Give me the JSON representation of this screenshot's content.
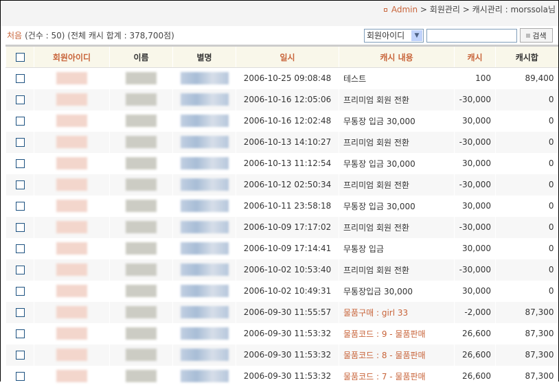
{
  "breadcrumb": {
    "admin": "Admin",
    "path": " > 회원관리 > 캐시관리 : morssola님"
  },
  "info": {
    "first": "처음",
    "summary": "(건수 : 50)  (전체 캐시 합계 : 378,700점)"
  },
  "search": {
    "field": "회원아이디",
    "value": "",
    "button": "검색"
  },
  "columns": [
    "회원아이디",
    "이름",
    "별명",
    "일시",
    "캐시 내용",
    "캐시",
    "캐시합"
  ],
  "rows": [
    {
      "date": "2006-10-25 09:08:48",
      "content": "테스트",
      "cash": "100",
      "total": "89,400",
      "link": false
    },
    {
      "date": "2006-10-16 12:05:06",
      "content": "프리미엄 회원 전환",
      "cash": "-30,000",
      "total": "0",
      "link": false
    },
    {
      "date": "2006-10-16 12:02:48",
      "content": "무통장 입금 30,000",
      "cash": "30,000",
      "total": "0",
      "link": false
    },
    {
      "date": "2006-10-13 14:10:27",
      "content": "프리미엄 회원 전환",
      "cash": "-30,000",
      "total": "0",
      "link": false
    },
    {
      "date": "2006-10-13 11:12:54",
      "content": "무통장 입금 30,000",
      "cash": "30,000",
      "total": "0",
      "link": false
    },
    {
      "date": "2006-10-12 02:50:34",
      "content": "프리미엄 회원 전환",
      "cash": "-30,000",
      "total": "0",
      "link": false
    },
    {
      "date": "2006-10-11 23:58:18",
      "content": "무통장 입금 30,000",
      "cash": "30,000",
      "total": "0",
      "link": false
    },
    {
      "date": "2006-10-09 17:17:02",
      "content": "프리미엄 회원 전환",
      "cash": "-30,000",
      "total": "0",
      "link": false
    },
    {
      "date": "2006-10-09 17:14:41",
      "content": "무통장 입금",
      "cash": "30,000",
      "total": "0",
      "link": false
    },
    {
      "date": "2006-10-02 10:53:40",
      "content": "프리미엄 회원 전환",
      "cash": "-30,000",
      "total": "0",
      "link": false
    },
    {
      "date": "2006-10-02 10:49:31",
      "content": "무통장입금 30,000",
      "cash": "30,000",
      "total": "0",
      "link": false
    },
    {
      "date": "2006-09-30 11:55:57",
      "content": "물품구매 : girl 33",
      "cash": "-2,000",
      "total": "87,300",
      "link": true
    },
    {
      "date": "2006-09-30 11:53:32",
      "content": "물품코드 : 9 - 물품판매",
      "cash": "26,600",
      "total": "87,300",
      "link": true
    },
    {
      "date": "2006-09-30 11:53:32",
      "content": "물품코드 : 8 - 물품판매",
      "cash": "26,600",
      "total": "87,300",
      "link": true
    },
    {
      "date": "2006-09-30 11:53:32",
      "content": "물품코드 : 7 - 물품판매",
      "cash": "26,600",
      "total": "87,300",
      "link": true
    }
  ]
}
